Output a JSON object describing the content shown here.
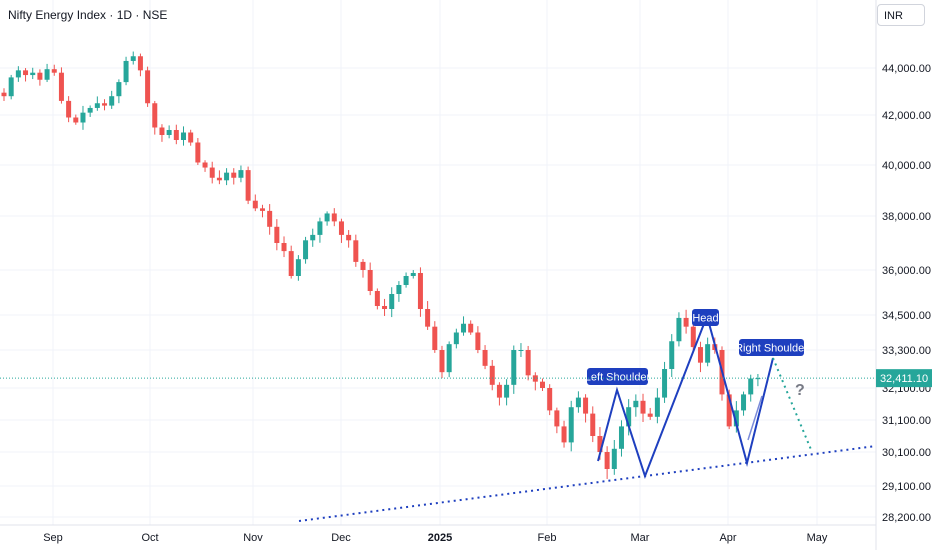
{
  "header": {
    "title": "Nifty Energy Index · 1D · NSE",
    "currency": "INR"
  },
  "colors": {
    "up": "#26a69a",
    "down": "#ef5350",
    "pattern": "#1e3fbf",
    "projection": "#26a69a",
    "price_label_bg": "#26a69a"
  },
  "chart_data": {
    "type": "candlestick",
    "title": "Nifty Energy Index · 1D · NSE",
    "y_ticks": [
      "44,000.00",
      "42,000.00",
      "40,000.00",
      "38,000.00",
      "36,000.00",
      "34,500.00",
      "33,300.00",
      "32,100.00",
      "31,100.00",
      "30,100.00",
      "29,100.00",
      "28,200.00"
    ],
    "x_ticks": [
      "Sep",
      "Oct",
      "Nov",
      "Dec",
      "2025",
      "Feb",
      "Mar",
      "Apr",
      "May"
    ],
    "last_price": "32,411.10",
    "closes": [
      42800,
      43600,
      43900,
      43700,
      43800,
      43500,
      43950,
      43800,
      42600,
      41900,
      41700,
      42100,
      42300,
      42500,
      42400,
      42800,
      43400,
      44300,
      44500,
      43900,
      42500,
      41500,
      41200,
      41400,
      41000,
      41300,
      40900,
      40100,
      39900,
      39500,
      39400,
      39700,
      39500,
      39800,
      38600,
      38300,
      38200,
      37600,
      37000,
      36700,
      35800,
      36400,
      37100,
      37300,
      37800,
      38100,
      37800,
      37300,
      37100,
      36300,
      36000,
      35300,
      34800,
      34700,
      35200,
      35500,
      35800,
      35900,
      34700,
      34100,
      33300,
      32600,
      33500,
      33900,
      34200,
      33900,
      33300,
      32800,
      32200,
      31800,
      32200,
      33300,
      33300,
      32500,
      32300,
      32100,
      31400,
      30900,
      30400,
      31500,
      31800,
      31300,
      30600,
      30100,
      29600,
      30200,
      30900,
      31500,
      31700,
      31300,
      31200,
      31800,
      32700,
      33600,
      34400,
      34100,
      33400,
      32900,
      33500,
      33300,
      31900,
      30900,
      31400,
      31900,
      32400,
      32411
    ],
    "patterns": [
      {
        "label": "Left Shoulder"
      },
      {
        "label": "Head"
      },
      {
        "label": "Right Shoulder"
      }
    ],
    "annotation": "?"
  }
}
